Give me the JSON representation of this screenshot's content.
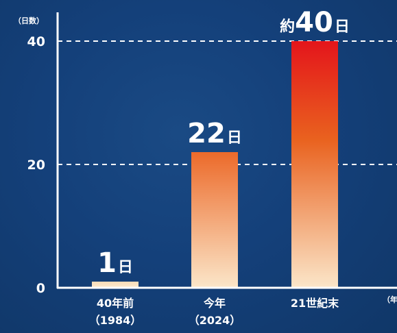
{
  "chart_data": {
    "type": "bar",
    "ylabel": "（日数）",
    "xlabel": "（年",
    "ylim": [
      0,
      40
    ],
    "yticks": [
      0,
      20,
      40
    ],
    "grid_values": [
      20,
      40
    ],
    "categories": [
      {
        "line1": "40年前",
        "line2": "（1984）"
      },
      {
        "line1": "今年",
        "line2": "（2024）"
      },
      {
        "line1": "21世紀末",
        "line2": ""
      }
    ],
    "values": [
      1,
      22,
      40
    ],
    "data_labels": [
      {
        "prefix": "",
        "number": "1",
        "unit": "日"
      },
      {
        "prefix": "",
        "number": "22",
        "unit": "日"
      },
      {
        "prefix": "約",
        "number": "40",
        "unit": "日"
      }
    ],
    "colors": {
      "bar_gradients": [
        {
          "top": "#f8dcb8",
          "bottom": "#fbe9cf"
        },
        {
          "top": "#ec6a2a",
          "bottom": "#fbe6c9"
        },
        {
          "top": "#e4151b",
          "mid": "#e9621f",
          "bottom": "#fbe6c9"
        }
      ],
      "axis": "#ffffff",
      "grid": "#ffffff"
    }
  }
}
